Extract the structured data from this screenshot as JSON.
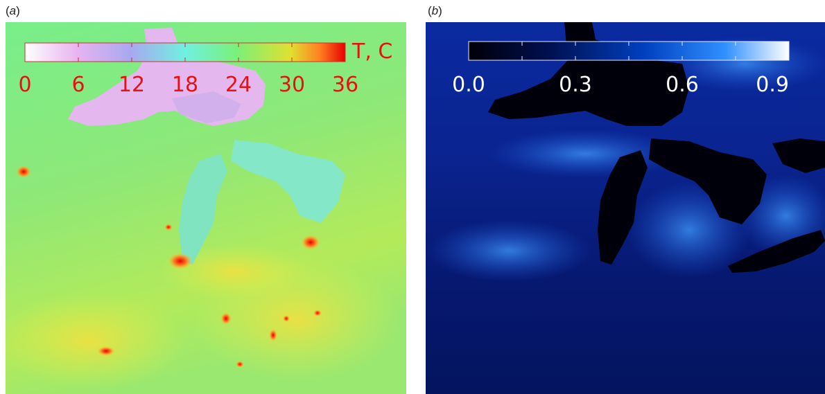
{
  "panel_a": {
    "label": "a",
    "colorbar": {
      "ticks": [
        "0",
        "6",
        "12",
        "18",
        "24",
        "30",
        "36"
      ],
      "unit": "T, C",
      "colors": [
        "#ffffff",
        "#e8b4f0",
        "#a8a8f0",
        "#70f0e0",
        "#7af07a",
        "#e0e030",
        "#ff8020",
        "#e80000"
      ],
      "tick_color": "#e81010"
    }
  },
  "panel_b": {
    "label": "b",
    "colorbar": {
      "ticks": [
        "0.0",
        "0.3",
        "0.6",
        "0.9"
      ],
      "colors": [
        "#000008",
        "#001050",
        "#0040c0",
        "#3090ff",
        "#ffffff"
      ],
      "tick_color": "#ffffff"
    }
  }
}
